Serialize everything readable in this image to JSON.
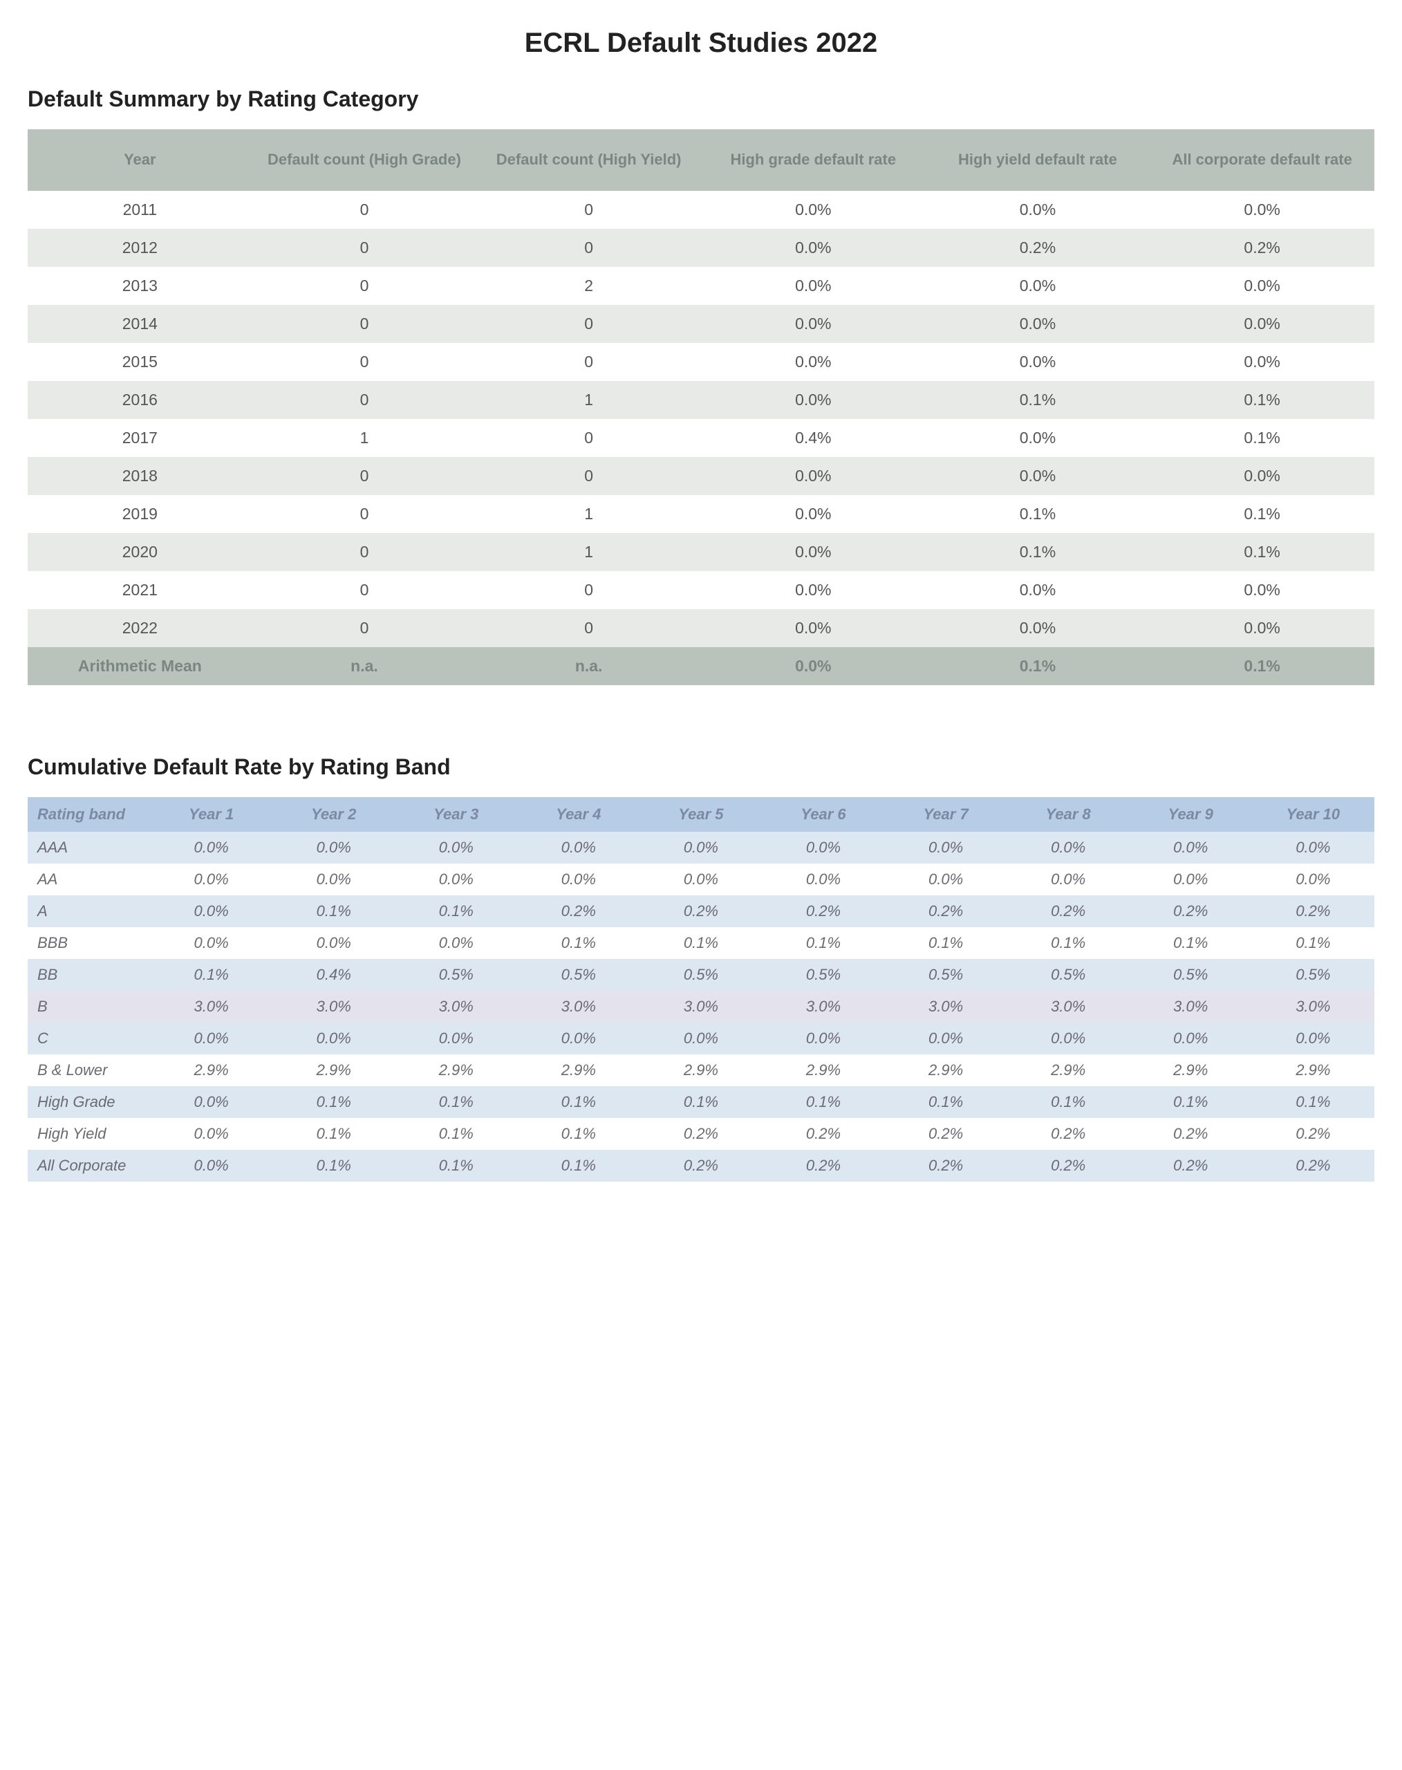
{
  "page": {
    "title": "ECRL Default Studies 2022"
  },
  "table1": {
    "title": "Default Summary by Rating Category",
    "header_bg": "#b9c3bc",
    "header_text_color": "#7a8780",
    "row_even_bg": "#e8eae8",
    "row_odd_bg": "#ffffff",
    "footer_bg": "#b9c3bc",
    "columns": [
      "Year",
      "Default count (High Grade)",
      "Default count (High Yield)",
      "High grade default rate",
      "High yield default rate",
      "All corporate default rate"
    ],
    "rows": [
      [
        "2011",
        "0",
        "0",
        "0.0%",
        "0.0%",
        "0.0%"
      ],
      [
        "2012",
        "0",
        "0",
        "0.0%",
        "0.2%",
        "0.2%"
      ],
      [
        "2013",
        "0",
        "2",
        "0.0%",
        "0.0%",
        "0.0%"
      ],
      [
        "2014",
        "0",
        "0",
        "0.0%",
        "0.0%",
        "0.0%"
      ],
      [
        "2015",
        "0",
        "0",
        "0.0%",
        "0.0%",
        "0.0%"
      ],
      [
        "2016",
        "0",
        "1",
        "0.0%",
        "0.1%",
        "0.1%"
      ],
      [
        "2017",
        "1",
        "0",
        "0.4%",
        "0.0%",
        "0.1%"
      ],
      [
        "2018",
        "0",
        "0",
        "0.0%",
        "0.0%",
        "0.0%"
      ],
      [
        "2019",
        "0",
        "1",
        "0.0%",
        "0.1%",
        "0.1%"
      ],
      [
        "2020",
        "0",
        "1",
        "0.0%",
        "0.1%",
        "0.1%"
      ],
      [
        "2021",
        "0",
        "0",
        "0.0%",
        "0.0%",
        "0.0%"
      ],
      [
        "2022",
        "0",
        "0",
        "0.0%",
        "0.0%",
        "0.0%"
      ]
    ],
    "footer": [
      "Arithmetic Mean",
      "n.a.",
      "n.a.",
      "0.0%",
      "0.1%",
      "0.1%"
    ]
  },
  "table2": {
    "title": "Cumulative Default Rate by Rating Band",
    "header_bg": "#b7cce5",
    "row_a_bg": "#dde7f2",
    "row_b_bg": "#e4e2ec",
    "row_c_bg": "#ffffff",
    "text_color": "#6a6a72",
    "columns": [
      "Rating band",
      "Year 1",
      "Year 2",
      "Year 3",
      "Year 4",
      "Year 5",
      "Year 6",
      "Year 7",
      "Year 8",
      "Year 9",
      "Year 10"
    ],
    "rows": [
      {
        "style": "a",
        "cells": [
          "AAA",
          "0.0%",
          "0.0%",
          "0.0%",
          "0.0%",
          "0.0%",
          "0.0%",
          "0.0%",
          "0.0%",
          "0.0%",
          "0.0%"
        ]
      },
      {
        "style": "c",
        "cells": [
          "AA",
          "0.0%",
          "0.0%",
          "0.0%",
          "0.0%",
          "0.0%",
          "0.0%",
          "0.0%",
          "0.0%",
          "0.0%",
          "0.0%"
        ]
      },
      {
        "style": "a",
        "cells": [
          "A",
          "0.0%",
          "0.1%",
          "0.1%",
          "0.2%",
          "0.2%",
          "0.2%",
          "0.2%",
          "0.2%",
          "0.2%",
          "0.2%"
        ]
      },
      {
        "style": "c",
        "cells": [
          "BBB",
          "0.0%",
          "0.0%",
          "0.0%",
          "0.1%",
          "0.1%",
          "0.1%",
          "0.1%",
          "0.1%",
          "0.1%",
          "0.1%"
        ]
      },
      {
        "style": "a",
        "cells": [
          "BB",
          "0.1%",
          "0.4%",
          "0.5%",
          "0.5%",
          "0.5%",
          "0.5%",
          "0.5%",
          "0.5%",
          "0.5%",
          "0.5%"
        ]
      },
      {
        "style": "b",
        "cells": [
          "B",
          "3.0%",
          "3.0%",
          "3.0%",
          "3.0%",
          "3.0%",
          "3.0%",
          "3.0%",
          "3.0%",
          "3.0%",
          "3.0%"
        ]
      },
      {
        "style": "a",
        "cells": [
          "C",
          "0.0%",
          "0.0%",
          "0.0%",
          "0.0%",
          "0.0%",
          "0.0%",
          "0.0%",
          "0.0%",
          "0.0%",
          "0.0%"
        ]
      },
      {
        "style": "c",
        "cells": [
          "B & Lower",
          "2.9%",
          "2.9%",
          "2.9%",
          "2.9%",
          "2.9%",
          "2.9%",
          "2.9%",
          "2.9%",
          "2.9%",
          "2.9%"
        ]
      },
      {
        "style": "a",
        "cells": [
          "High Grade",
          "0.0%",
          "0.1%",
          "0.1%",
          "0.1%",
          "0.1%",
          "0.1%",
          "0.1%",
          "0.1%",
          "0.1%",
          "0.1%"
        ]
      },
      {
        "style": "c",
        "cells": [
          "High Yield",
          "0.0%",
          "0.1%",
          "0.1%",
          "0.1%",
          "0.2%",
          "0.2%",
          "0.2%",
          "0.2%",
          "0.2%",
          "0.2%"
        ]
      },
      {
        "style": "a",
        "cells": [
          "All Corporate",
          "0.0%",
          "0.1%",
          "0.1%",
          "0.1%",
          "0.2%",
          "0.2%",
          "0.2%",
          "0.2%",
          "0.2%",
          "0.2%"
        ]
      }
    ]
  }
}
